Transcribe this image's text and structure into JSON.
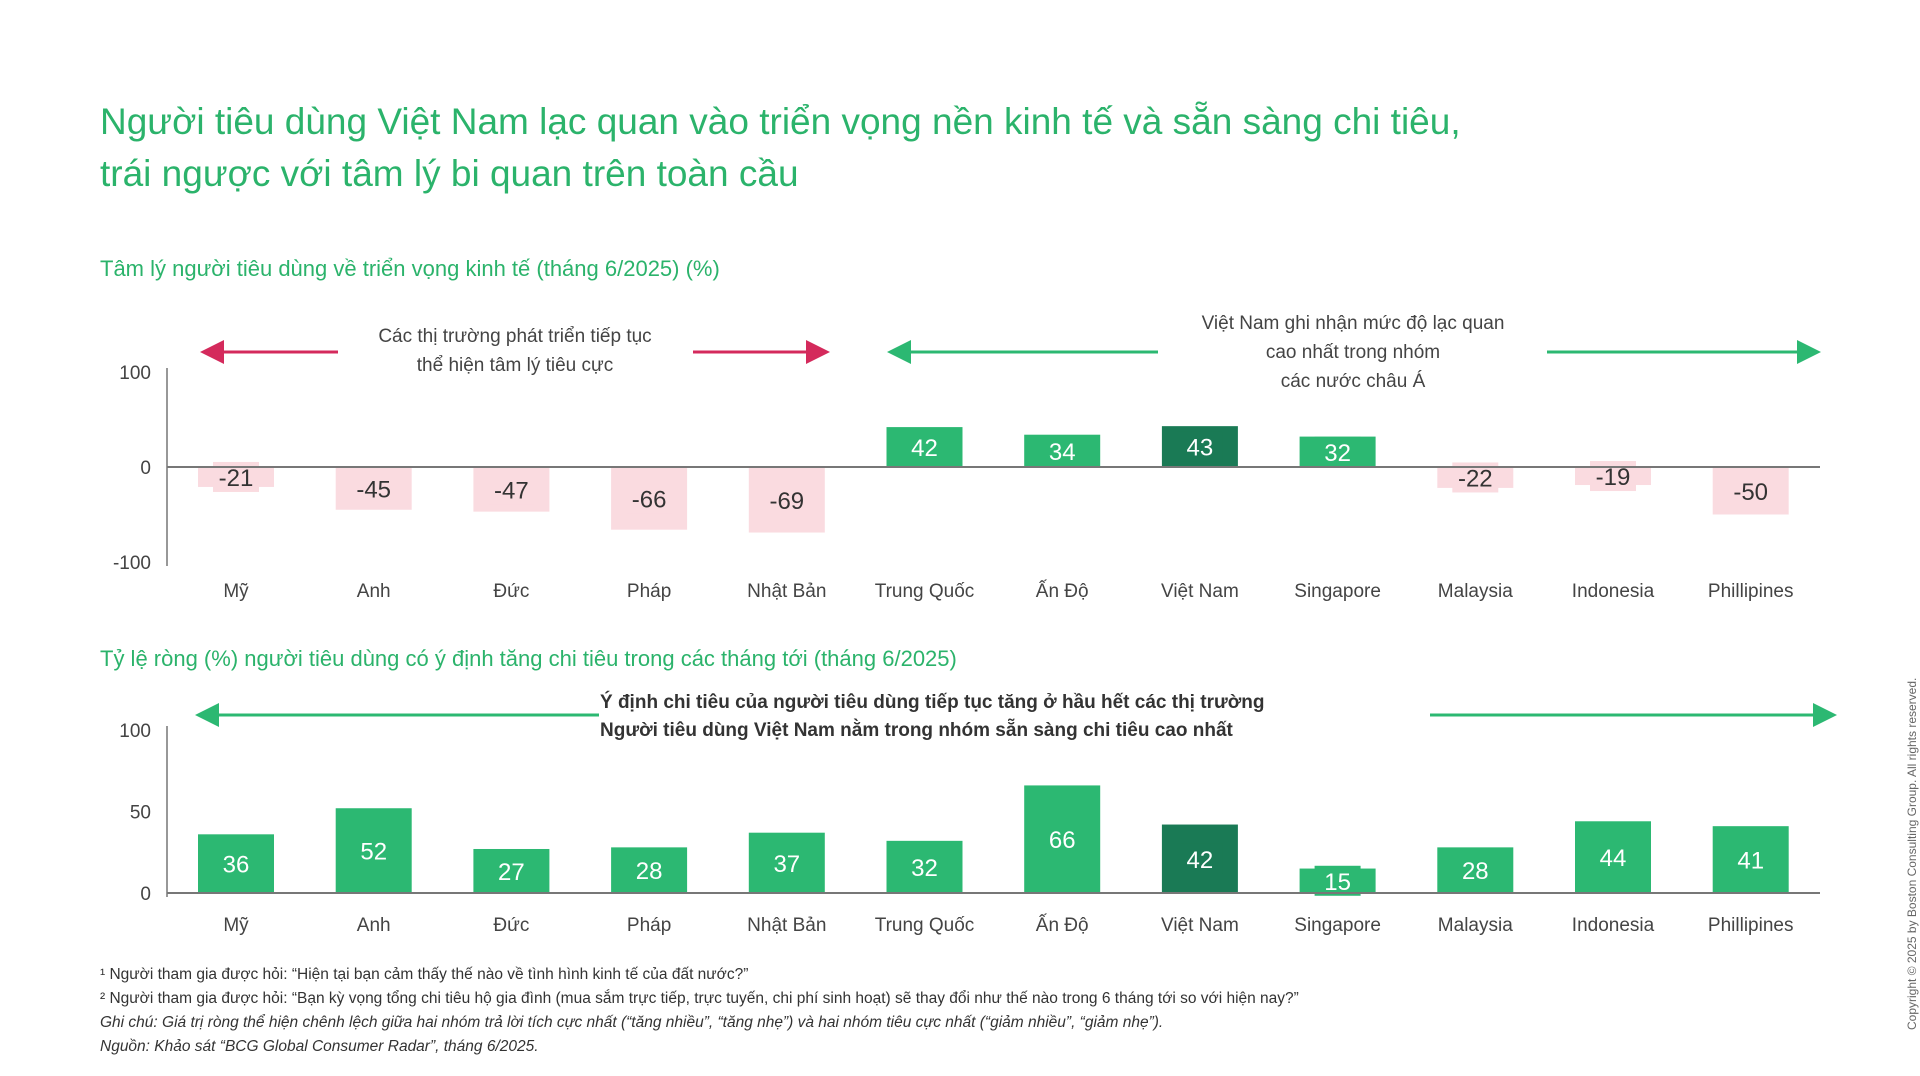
{
  "title_lines": [
    "Người tiêu dùng Việt Nam lạc quan vào triển vọng nền kinh tế và sẵn sàng chi tiêu,",
    "trái ngược với tâm lý bi quan trên toàn cầu"
  ],
  "colors": {
    "green": "#2cb872",
    "dark_green": "#1a7a55",
    "pink": "#fadbe0",
    "pink_arrow": "#d42a5c",
    "title": "#2bb36b"
  },
  "chart_data": [
    {
      "type": "bar",
      "title": "Tâm lý người tiêu dùng về triển vọng kinh tế (tháng 6/2025) (%)",
      "categories": [
        "Mỹ",
        "Anh",
        "Đức",
        "Pháp",
        "Nhật Bản",
        "Trung Quốc",
        "Ấn Độ",
        "Việt Nam",
        "Singapore",
        "Malaysia",
        "Indonesia",
        "Phillipines"
      ],
      "values": [
        -21,
        -45,
        -47,
        -66,
        -69,
        42,
        34,
        43,
        32,
        -22,
        -19,
        -50
      ],
      "highlight": "Việt Nam",
      "ylim": [
        -100,
        100
      ],
      "yticks": [
        "100",
        "0",
        "-100"
      ],
      "annotations": {
        "left": [
          "Các thị trường phát triển tiếp tục",
          "thể hiện tâm lý tiêu cực"
        ],
        "right": [
          "Việt Nam ghi nhận mức độ lạc quan",
          "cao nhất trong nhóm",
          "các nước châu Á"
        ]
      }
    },
    {
      "type": "bar",
      "title": "Tỷ lệ ròng (%) người tiêu dùng có ý định tăng chi tiêu trong các tháng tới (tháng 6/2025)",
      "categories": [
        "Mỹ",
        "Anh",
        "Đức",
        "Pháp",
        "Nhật Bản",
        "Trung Quốc",
        "Ấn Độ",
        "Việt Nam",
        "Singapore",
        "Malaysia",
        "Indonesia",
        "Phillipines"
      ],
      "values": [
        36,
        52,
        27,
        28,
        37,
        32,
        66,
        42,
        15,
        28,
        44,
        41
      ],
      "highlight": "Việt Nam",
      "ylim": [
        0,
        100
      ],
      "yticks": [
        "100",
        "50",
        "0"
      ],
      "annotations": {
        "center": [
          "Ý định chi tiêu của người tiêu dùng tiếp tục tăng ở hầu hết các thị trường",
          "Người tiêu dùng Việt Nam nằm trong nhóm sẵn sàng chi tiêu cao nhất"
        ]
      }
    }
  ],
  "footnotes": {
    "n1": "¹ Người tham gia được hỏi: “Hiện tại bạn cảm thấy thế nào về tình hình kinh tế của đất nước?”",
    "n2": "² Người tham gia được hỏi: “Bạn kỳ vọng tổng chi tiêu hộ gia đình (mua sắm trực tiếp, trực tuyến, chi phí sinh hoạt) sẽ thay đổi như thế nào trong 6 tháng tới so với hiện nay?”",
    "note": "Ghi chú: Giá trị ròng thể hiện chênh lệch giữa hai nhóm trả lời tích cực nhất (“tăng nhiều”, “tăng nhẹ”) và hai nhóm tiêu cực nhất (“giảm nhiều”, “giảm nhẹ”).",
    "source": "Nguồn: Khảo sát “BCG Global Consumer Radar”, tháng 6/2025."
  },
  "copyright": "Copyright © 2025 by Boston Consulting Group. All rights reserved."
}
